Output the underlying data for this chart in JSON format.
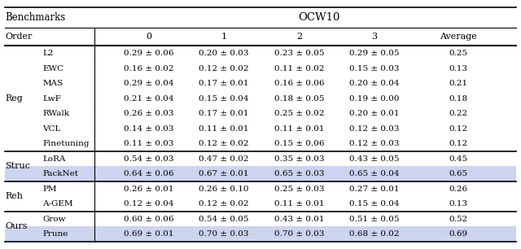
{
  "title": "OCW10",
  "header_benchmarks": "Benchmarks",
  "header_order": "Order",
  "col_headers": [
    "0",
    "1",
    "2",
    "3",
    "Average"
  ],
  "groups": [
    {
      "group_label": "Reg",
      "rows": [
        {
          "method": "L2",
          "vals": [
            "0.29 ± 0.06",
            "0.20 ± 0.03",
            "0.23 ± 0.05",
            "0.29 ± 0.05",
            "0.25"
          ],
          "highlight": false
        },
        {
          "method": "EWC",
          "vals": [
            "0.16 ± 0.02",
            "0.12 ± 0.02",
            "0.11 ± 0.02",
            "0.15 ± 0.03",
            "0.13"
          ],
          "highlight": false
        },
        {
          "method": "MAS",
          "vals": [
            "0.29 ± 0.04",
            "0.17 ± 0.01",
            "0.16 ± 0.06",
            "0.20 ± 0.04",
            "0.21"
          ],
          "highlight": false
        },
        {
          "method": "LwF",
          "vals": [
            "0.21 ± 0.04",
            "0.15 ± 0.04",
            "0.18 ± 0.05",
            "0.19 ± 0.00",
            "0.18"
          ],
          "highlight": false
        },
        {
          "method": "RWalk",
          "vals": [
            "0.26 ± 0.03",
            "0.17 ± 0.01",
            "0.25 ± 0.02",
            "0.20 ± 0.01",
            "0.22"
          ],
          "highlight": false
        },
        {
          "method": "VCL",
          "vals": [
            "0.14 ± 0.03",
            "0.11 ± 0.01",
            "0.11 ± 0.01",
            "0.12 ± 0.03",
            "0.12"
          ],
          "highlight": false
        },
        {
          "method": "Finetuning",
          "vals": [
            "0.11 ± 0.03",
            "0.12 ± 0.02",
            "0.15 ± 0.06",
            "0.12 ± 0.03",
            "0.12"
          ],
          "highlight": false
        }
      ]
    },
    {
      "group_label": "Struc",
      "rows": [
        {
          "method": "LoRA",
          "vals": [
            "0.54 ± 0.03",
            "0.47 ± 0.02",
            "0.35 ± 0.03",
            "0.43 ± 0.05",
            "0.45"
          ],
          "highlight": false
        },
        {
          "method": "PackNet",
          "vals": [
            "0.64 ± 0.06",
            "0.67 ± 0.01",
            "0.65 ± 0.03",
            "0.65 ± 0.04",
            "0.65"
          ],
          "highlight": true
        }
      ]
    },
    {
      "group_label": "Reh",
      "rows": [
        {
          "method": "PM",
          "vals": [
            "0.26 ± 0.01",
            "0.26 ± 0.10",
            "0.25 ± 0.03",
            "0.27 ± 0.01",
            "0.26"
          ],
          "highlight": false
        },
        {
          "method": "A-GEM",
          "vals": [
            "0.12 ± 0.04",
            "0.12 ± 0.02",
            "0.11 ± 0.01",
            "0.15 ± 0.04",
            "0.13"
          ],
          "highlight": false
        }
      ]
    },
    {
      "group_label": "Ours",
      "rows": [
        {
          "method": "Grow",
          "vals": [
            "0.60 ± 0.06",
            "0.54 ± 0.05",
            "0.43 ± 0.01",
            "0.51 ± 0.05",
            "0.52"
          ],
          "highlight": false
        },
        {
          "method": "Prune",
          "vals": [
            "0.69 ± 0.01",
            "0.70 ± 0.03",
            "0.70 ± 0.03",
            "0.68 ± 0.02",
            "0.69"
          ],
          "highlight": true
        }
      ]
    }
  ],
  "highlight_color": "#ccd4f0",
  "bg_color": "#ffffff",
  "font_size": 7.5,
  "header_font_size": 8.5
}
